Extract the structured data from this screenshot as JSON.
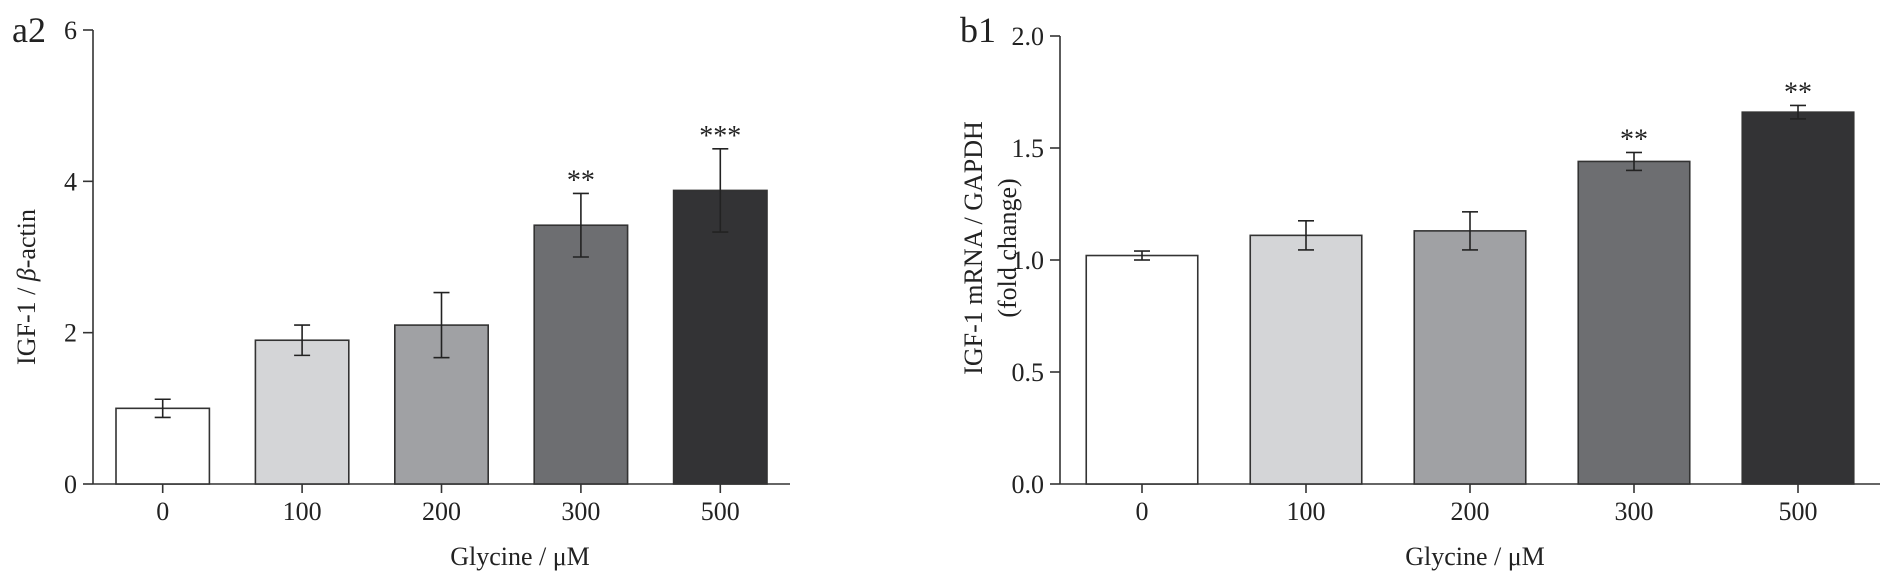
{
  "chart_data": [
    {
      "panel_label": "a2",
      "type": "bar",
      "xlabel": "Glycine / μM",
      "ylabel": "IGF-1 / β-actin",
      "ylabel_prefix": "IGF-1 / ",
      "ylabel_symbol": "β",
      "ylabel_suffix": "-actin",
      "categories": [
        "0",
        "100",
        "200",
        "300",
        "500"
      ],
      "values": [
        1.0,
        1.9,
        2.1,
        3.42,
        3.88
      ],
      "errors": [
        0.12,
        0.2,
        0.43,
        0.42,
        0.55
      ],
      "significance": [
        "",
        "",
        "",
        "**",
        "***"
      ],
      "colors": [
        "#ffffff",
        "#d4d5d7",
        "#a0a1a4",
        "#6d6e71",
        "#333335"
      ],
      "ylim": [
        0,
        6
      ],
      "yticks": [
        0,
        2,
        4,
        6
      ],
      "ytick_labels": [
        "0",
        "2",
        "4",
        "6"
      ]
    },
    {
      "panel_label": "b1",
      "type": "bar",
      "xlabel": "Glycine / μM",
      "ylabel": "IGF-1 mRNA / GAPDH",
      "ylabel2": "(fold change)",
      "categories": [
        "0",
        "100",
        "200",
        "300",
        "500"
      ],
      "values": [
        1.02,
        1.11,
        1.13,
        1.44,
        1.66
      ],
      "errors": [
        0.02,
        0.065,
        0.085,
        0.04,
        0.03
      ],
      "significance": [
        "",
        "",
        "",
        "**",
        "**"
      ],
      "colors": [
        "#ffffff",
        "#d4d5d7",
        "#a0a1a4",
        "#6d6e71",
        "#333335"
      ],
      "ylim": [
        0,
        2.0
      ],
      "yticks": [
        0,
        0.5,
        1.0,
        1.5,
        2.0
      ],
      "ytick_labels": [
        "0.0",
        "0.5",
        "1.0",
        "1.5",
        "2.0"
      ]
    }
  ]
}
